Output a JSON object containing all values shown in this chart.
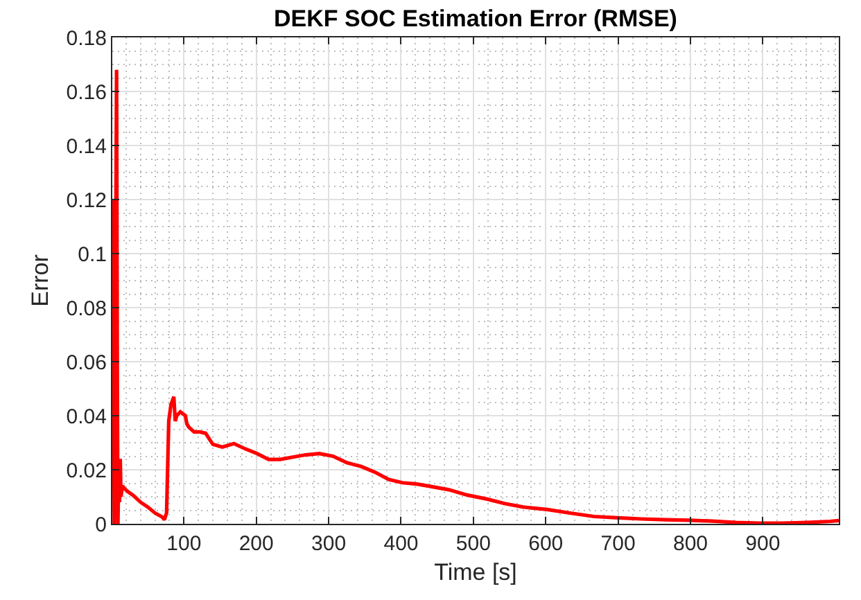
{
  "chart_data": {
    "type": "line",
    "title": "DEKF SOC Estimation Error (RMSE)",
    "xlabel": "Time [s]",
    "ylabel": "Error",
    "x": [
      1,
      1.3,
      1.7,
      2.5,
      3,
      3.7,
      5,
      6.9,
      8,
      8.8,
      10,
      11,
      12,
      13,
      15,
      18,
      22,
      30,
      40,
      50,
      60,
      70,
      73,
      76,
      79,
      82,
      86,
      88,
      90,
      95,
      102,
      104,
      107,
      114,
      122,
      130,
      136,
      140,
      153,
      169,
      185,
      201,
      217,
      233,
      249,
      268,
      287,
      306,
      325,
      345,
      364,
      383,
      402,
      422,
      441,
      466,
      492,
      518,
      543,
      569,
      602,
      635,
      667,
      700,
      732,
      765,
      798,
      830,
      863,
      896,
      928,
      961,
      993,
      1005
    ],
    "series": [
      {
        "color": "#ff0000",
        "values": [
          0.04,
          0.075,
          0.04,
          0.12,
          0.05,
          0.0,
          0.06,
          0.168,
          0.05,
          0.0,
          0.023,
          0.008,
          0.024,
          0.01,
          0.014,
          0.013,
          0.012,
          0.0105,
          0.008,
          0.0062,
          0.004,
          0.0025,
          0.0015,
          0.004,
          0.038,
          0.044,
          0.047,
          0.038,
          0.04,
          0.0414,
          0.04,
          0.037,
          0.0357,
          0.034,
          0.034,
          0.0335,
          0.031,
          0.0294,
          0.0284,
          0.0297,
          0.0277,
          0.026,
          0.0238,
          0.0238,
          0.0246,
          0.0255,
          0.026,
          0.025,
          0.0226,
          0.0212,
          0.0191,
          0.0164,
          0.0152,
          0.0147,
          0.0138,
          0.0126,
          0.0106,
          0.0092,
          0.0075,
          0.0062,
          0.0053,
          0.0039,
          0.0027,
          0.0022,
          0.0018,
          0.0015,
          0.0013,
          0.001,
          0.0005,
          0.0002,
          0.0002,
          0.0005,
          0.0009,
          0.0012
        ]
      }
    ],
    "xlim": [
      1,
      1005
    ],
    "ylim": [
      0,
      0.18
    ],
    "xticks": [
      100,
      200,
      300,
      400,
      500,
      600,
      700,
      800,
      900
    ],
    "yticks": [
      0,
      0.02,
      0.04,
      0.06,
      0.08,
      0.1,
      0.12,
      0.14,
      0.16,
      0.18
    ],
    "grid": true,
    "marker": "none",
    "line_style": "solid"
  }
}
